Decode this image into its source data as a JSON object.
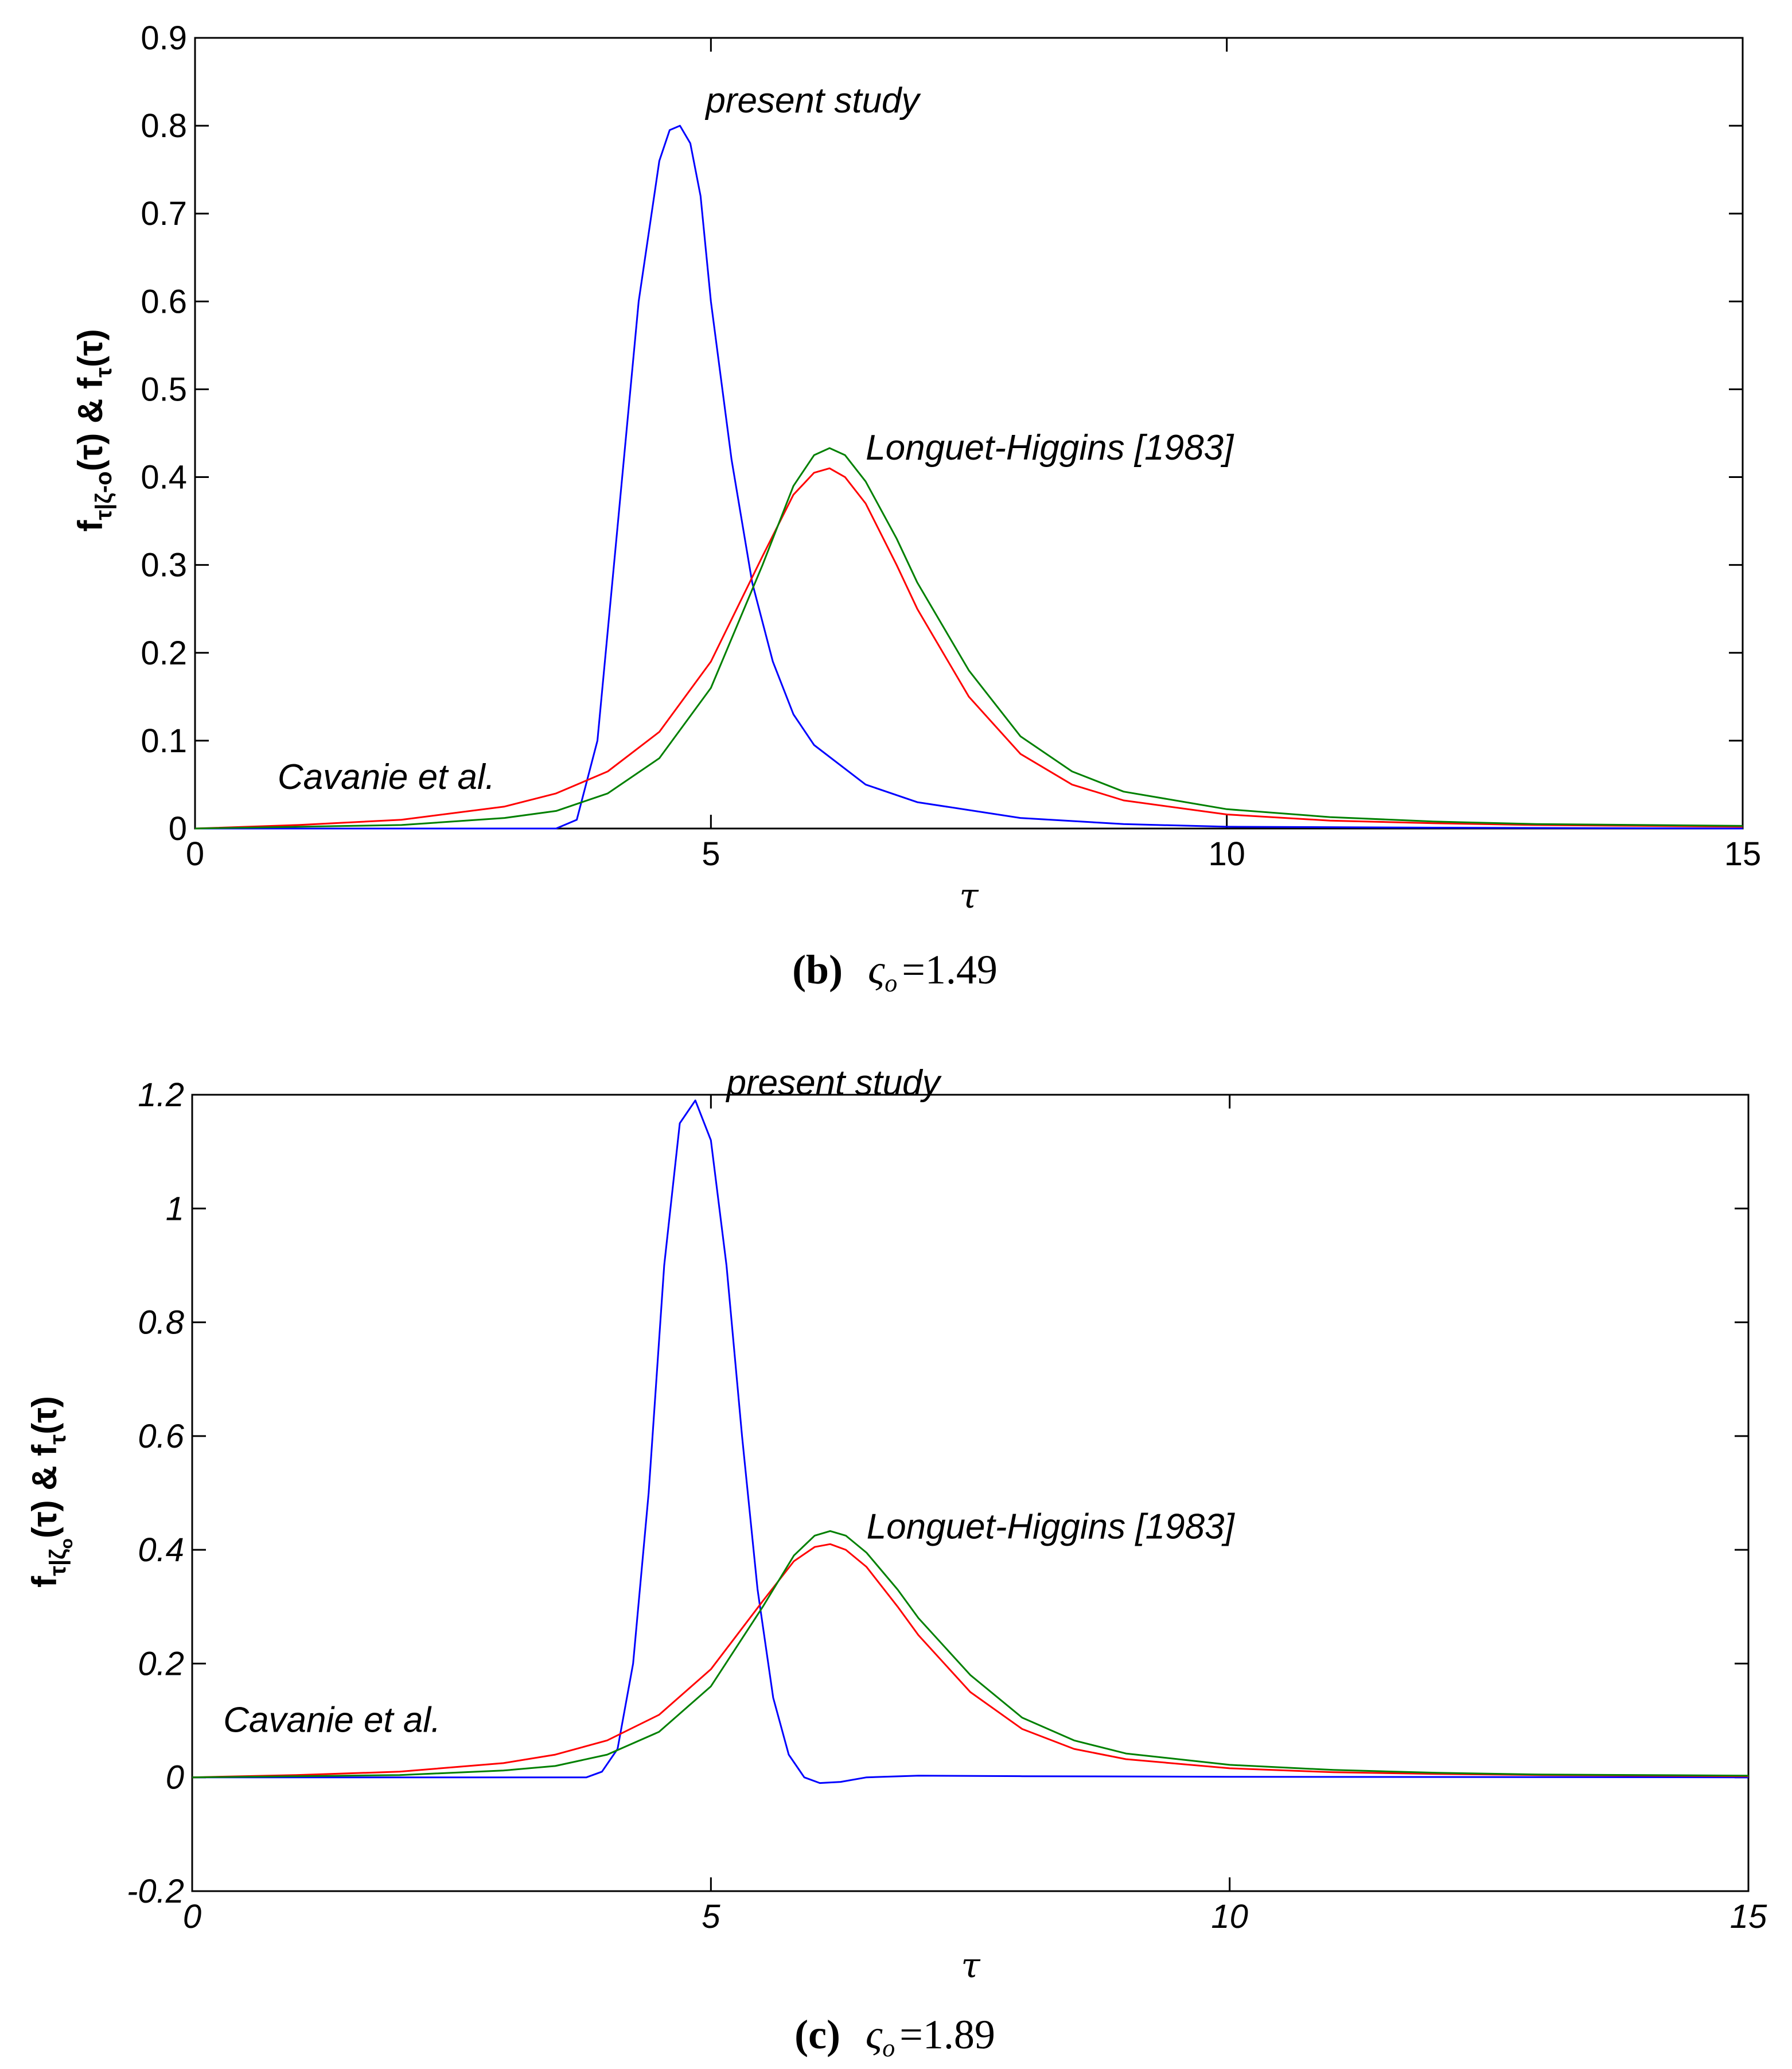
{
  "chart_data": [
    {
      "type": "line",
      "panel_caption": {
        "letter": "(b)",
        "symbol": "ς",
        "subscript": "o",
        "equals": "=1.49"
      },
      "ylabel": {
        "main": "f",
        "sub1": "τ|ζ-o",
        "mid": "(τ) & f",
        "sub2": "τ",
        "end": "(τ)"
      },
      "xlabel": "τ",
      "xlim": [
        0,
        15
      ],
      "ylim": [
        0,
        0.9
      ],
      "x_ticks": [
        0,
        5,
        10,
        15
      ],
      "x_tick_labels": [
        "0",
        "5",
        "10",
        "15"
      ],
      "y_ticks": [
        0,
        0.1,
        0.2,
        0.3,
        0.4,
        0.5,
        0.6,
        0.7,
        0.8,
        0.9
      ],
      "y_tick_labels": [
        "0",
        "0.1",
        "0.2",
        "0.3",
        "0.4",
        "0.5",
        "0.6",
        "0.7",
        "0.8",
        "0.9"
      ],
      "tick_style": "normal",
      "grid": false,
      "annotations": [
        {
          "text": "present study",
          "x": 4.95,
          "y": 0.815
        },
        {
          "text": "Longuet-Higgins [1983]",
          "x": 6.5,
          "y": 0.42
        },
        {
          "text": "Cavanie et al.",
          "x": 0.8,
          "y": 0.045
        }
      ],
      "series": [
        {
          "color": "#0000ff",
          "x": [
            0,
            3.5,
            3.7,
            3.9,
            4.1,
            4.3,
            4.5,
            4.6,
            4.7,
            4.8,
            4.9,
            5.0,
            5.2,
            5.4,
            5.6,
            5.8,
            6.0,
            6.5,
            7.0,
            8.0,
            9.0,
            10.0,
            12.0,
            15.0
          ],
          "y": [
            0,
            0,
            0.01,
            0.1,
            0.35,
            0.6,
            0.76,
            0.795,
            0.8,
            0.78,
            0.72,
            0.6,
            0.42,
            0.28,
            0.19,
            0.13,
            0.095,
            0.05,
            0.03,
            0.012,
            0.005,
            0.002,
            0.001,
            0
          ]
        },
        {
          "color": "#ff0000",
          "x": [
            0,
            1.0,
            2.0,
            3.0,
            3.5,
            4.0,
            4.5,
            5.0,
            5.5,
            5.8,
            6.0,
            6.15,
            6.3,
            6.5,
            6.8,
            7.0,
            7.5,
            8.0,
            8.5,
            9.0,
            10.0,
            11.0,
            12.0,
            13.0,
            15.0
          ],
          "y": [
            0.0,
            0.004,
            0.01,
            0.025,
            0.04,
            0.065,
            0.11,
            0.19,
            0.31,
            0.38,
            0.405,
            0.41,
            0.4,
            0.37,
            0.3,
            0.25,
            0.15,
            0.085,
            0.05,
            0.032,
            0.016,
            0.009,
            0.006,
            0.004,
            0.002
          ]
        },
        {
          "color": "#008000",
          "x": [
            0,
            1.0,
            2.0,
            3.0,
            3.5,
            4.0,
            4.5,
            5.0,
            5.5,
            5.8,
            6.0,
            6.15,
            6.3,
            6.5,
            6.8,
            7.0,
            7.5,
            8.0,
            8.5,
            9.0,
            10.0,
            11.0,
            12.0,
            13.0,
            15.0
          ],
          "y": [
            0.0,
            0.002,
            0.004,
            0.012,
            0.02,
            0.04,
            0.08,
            0.16,
            0.3,
            0.39,
            0.425,
            0.433,
            0.425,
            0.395,
            0.33,
            0.28,
            0.18,
            0.105,
            0.065,
            0.042,
            0.022,
            0.013,
            0.008,
            0.005,
            0.003
          ]
        }
      ]
    },
    {
      "type": "line",
      "panel_caption": {
        "letter": "(c)",
        "symbol": "ς",
        "subscript": "o",
        "equals": "=1.89"
      },
      "ylabel": {
        "main": "f",
        "sub1": "τ|ζ",
        "subsub": "o",
        "mid": "(τ) & f",
        "sub2": "τ",
        "end": "(τ)"
      },
      "xlabel": "τ",
      "xlim": [
        0,
        15
      ],
      "ylim": [
        -0.2,
        1.2
      ],
      "x_ticks": [
        0,
        5,
        10,
        15
      ],
      "x_tick_labels": [
        "0",
        "5",
        "10",
        "15"
      ],
      "y_ticks": [
        -0.2,
        0,
        0.2,
        0.4,
        0.6,
        0.8,
        1.0,
        1.2
      ],
      "y_tick_labels": [
        "-0.2",
        "0",
        "0.2",
        "0.4",
        "0.6",
        "0.8",
        "1",
        "1.2"
      ],
      "tick_style": "italic",
      "grid": false,
      "annotations": [
        {
          "text": "present study",
          "x": 5.15,
          "y": 1.2
        },
        {
          "text": "Longuet-Higgins [1983]",
          "x": 6.5,
          "y": 0.42
        },
        {
          "text": "Cavanie et al.",
          "x": 0.3,
          "y": 0.08
        }
      ],
      "series": [
        {
          "color": "#0000ff",
          "x": [
            0,
            3.8,
            3.95,
            4.1,
            4.25,
            4.4,
            4.55,
            4.7,
            4.85,
            5.0,
            5.15,
            5.3,
            5.45,
            5.6,
            5.75,
            5.9,
            6.05,
            6.25,
            6.5,
            7.0,
            8.0,
            10.0,
            15.0
          ],
          "y": [
            0,
            0,
            0.01,
            0.05,
            0.2,
            0.5,
            0.9,
            1.15,
            1.19,
            1.12,
            0.9,
            0.6,
            0.33,
            0.14,
            0.04,
            0.0,
            -0.01,
            -0.008,
            0.0,
            0.003,
            0.002,
            0.001,
            0
          ]
        },
        {
          "color": "#ff0000",
          "x": [
            0,
            1.0,
            2.0,
            3.0,
            3.5,
            4.0,
            4.5,
            5.0,
            5.5,
            5.8,
            6.0,
            6.15,
            6.3,
            6.5,
            6.8,
            7.0,
            7.5,
            8.0,
            8.5,
            9.0,
            10.0,
            11.0,
            12.0,
            13.0,
            15.0
          ],
          "y": [
            0.0,
            0.004,
            0.01,
            0.025,
            0.04,
            0.065,
            0.11,
            0.19,
            0.31,
            0.38,
            0.405,
            0.41,
            0.4,
            0.37,
            0.3,
            0.25,
            0.15,
            0.085,
            0.05,
            0.032,
            0.016,
            0.009,
            0.006,
            0.004,
            0.002
          ]
        },
        {
          "color": "#008000",
          "x": [
            0,
            1.0,
            2.0,
            3.0,
            3.5,
            4.0,
            4.5,
            5.0,
            5.5,
            5.8,
            6.0,
            6.15,
            6.3,
            6.5,
            6.8,
            7.0,
            7.5,
            8.0,
            8.5,
            9.0,
            10.0,
            11.0,
            12.0,
            13.0,
            15.0
          ],
          "y": [
            0.0,
            0.002,
            0.004,
            0.012,
            0.02,
            0.04,
            0.08,
            0.16,
            0.3,
            0.39,
            0.425,
            0.433,
            0.425,
            0.395,
            0.33,
            0.28,
            0.18,
            0.105,
            0.065,
            0.042,
            0.022,
            0.013,
            0.008,
            0.005,
            0.003
          ]
        }
      ]
    }
  ]
}
